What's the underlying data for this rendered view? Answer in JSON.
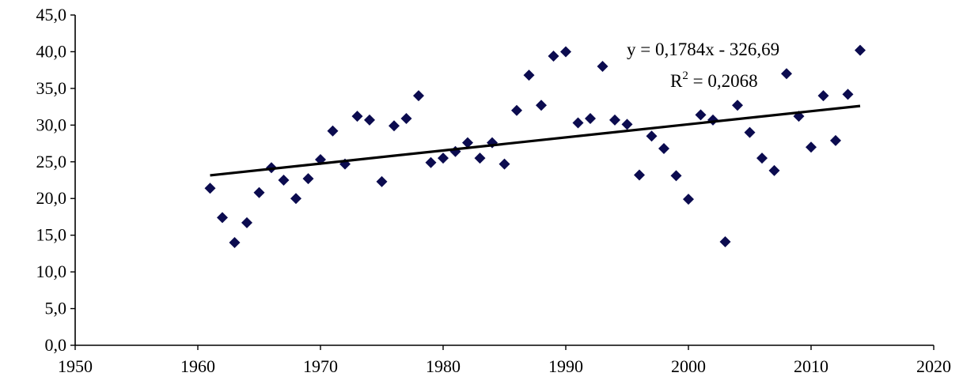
{
  "chart_data": {
    "type": "scatter",
    "title": "",
    "xlabel": "",
    "ylabel": "",
    "xlim": [
      1950,
      2020
    ],
    "ylim": [
      0,
      45
    ],
    "x_ticks": [
      1950,
      1960,
      1970,
      1980,
      1990,
      2000,
      2010,
      2020
    ],
    "y_ticks": [
      0,
      5,
      10,
      15,
      20,
      25,
      30,
      35,
      40,
      45
    ],
    "x_tick_labels": [
      "1950",
      "1960",
      "1970",
      "1980",
      "1990",
      "2000",
      "2010",
      "2020"
    ],
    "y_tick_labels": [
      "0,0",
      "5,0",
      "10,0",
      "15,0",
      "20,0",
      "25,0",
      "30,0",
      "35,0",
      "40,0",
      "45,0"
    ],
    "grid": false,
    "legend": "none",
    "marker": "diamond",
    "marker_color": "#0b0b4f",
    "series": [
      {
        "x": [
          1961,
          1962,
          1963,
          1964,
          1965,
          1966,
          1967,
          1968,
          1969,
          1970,
          1971,
          1972,
          1973,
          1974,
          1975,
          1976,
          1977,
          1978,
          1979,
          1980,
          1981,
          1982,
          1983,
          1984,
          1985,
          1986,
          1987,
          1988,
          1989,
          1990,
          1991,
          1992,
          1993,
          1994,
          1995,
          1996,
          1997,
          1998,
          1999,
          2000,
          2001,
          2002,
          2003,
          2004,
          2005,
          2006,
          2007,
          2008,
          2009,
          2010,
          2011,
          2012,
          2013,
          2014
        ],
        "y": [
          21.4,
          17.4,
          14.0,
          16.7,
          20.8,
          24.2,
          22.5,
          20.0,
          22.7,
          25.3,
          29.2,
          24.7,
          31.2,
          30.7,
          22.3,
          29.9,
          30.9,
          34.0,
          24.9,
          25.5,
          26.4,
          27.6,
          25.5,
          27.6,
          24.7,
          32.0,
          36.8,
          32.7,
          39.4,
          40.0,
          30.3,
          30.9,
          38.0,
          30.7,
          30.1,
          23.2,
          28.5,
          26.8,
          23.1,
          19.9,
          31.4,
          30.7,
          14.1,
          32.7,
          29.0,
          25.5,
          23.8,
          37.0,
          31.2,
          27.0,
          34.0,
          27.9,
          34.2,
          40.2
        ]
      }
    ],
    "trendline": {
      "type": "linear",
      "slope": 0.1784,
      "intercept": -326.69,
      "x_range": [
        1961,
        2014
      ],
      "color": "#000000"
    },
    "annotations": {
      "equation": "y = 0,1784x - 326,69",
      "r_squared_prefix": "R",
      "r_squared_sup": "2",
      "r_squared_value": " = 0,2068"
    }
  }
}
